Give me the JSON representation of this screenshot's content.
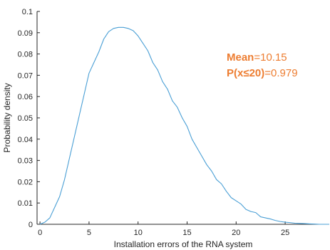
{
  "chart_data": {
    "type": "line",
    "xlabel": "Installation errors of the RNA system",
    "ylabel": "Probability density",
    "xlim": [
      -0.3,
      29.5
    ],
    "ylim": [
      0,
      0.1
    ],
    "xticks": [
      0,
      5,
      10,
      15,
      20,
      25
    ],
    "xtick_labels": [
      "0",
      "5",
      "10",
      "15",
      "20",
      "25"
    ],
    "yticks": [
      0,
      0.01,
      0.02,
      0.03,
      0.04,
      0.05,
      0.06,
      0.07,
      0.08,
      0.09,
      0.1
    ],
    "ytick_labels": [
      "0",
      "0.01",
      "0.02",
      "0.03",
      "0.04",
      "0.05",
      "0.06",
      "0.07",
      "0.08",
      "0.09",
      "0.1"
    ],
    "grid": false,
    "colors": {
      "line": "#4a9fd5",
      "annotation": "#ed7d31",
      "axis": "#262626"
    },
    "series": [
      {
        "x": [
          0,
          0.5,
          1.0,
          1.5,
          2.0,
          2.5,
          3.0,
          3.5,
          4.0,
          4.5,
          5.0,
          5.5,
          6.0,
          6.5,
          7.0,
          7.5,
          8.0,
          8.5,
          9.0,
          9.5,
          10.0,
          10.5,
          11.0,
          11.5,
          12.0,
          12.5,
          13.0,
          13.5,
          14.0,
          14.5,
          15.0,
          15.5,
          16.0,
          16.5,
          17.0,
          17.5,
          18.0,
          18.5,
          19.0,
          19.5,
          20.0,
          20.5,
          21.0,
          21.5,
          22.0,
          22.5,
          23.0,
          23.5,
          24.0,
          24.5,
          25.0,
          25.5,
          26.0,
          26.5,
          27.0,
          27.5,
          28.0,
          28.5,
          29.0,
          29.5
        ],
        "y": [
          0.0,
          0.001,
          0.003,
          0.008,
          0.013,
          0.021,
          0.031,
          0.041,
          0.051,
          0.061,
          0.071,
          0.076,
          0.081,
          0.087,
          0.0905,
          0.092,
          0.0925,
          0.0925,
          0.092,
          0.091,
          0.0885,
          0.085,
          0.0815,
          0.076,
          0.0725,
          0.067,
          0.0635,
          0.058,
          0.055,
          0.05,
          0.046,
          0.04,
          0.036,
          0.032,
          0.028,
          0.025,
          0.021,
          0.019,
          0.0155,
          0.0125,
          0.011,
          0.0095,
          0.007,
          0.006,
          0.0055,
          0.0035,
          0.003,
          0.0025,
          0.0018,
          0.0013,
          0.001,
          0.0008,
          0.0005,
          0.0004,
          0.0003,
          0.0002,
          0.0001,
          0.0,
          0.0,
          0.0
        ]
      }
    ],
    "annotations": [
      {
        "key": "Mean",
        "value": "=10.15"
      },
      {
        "key": "P(x≤20)",
        "value": "=0.979"
      }
    ]
  }
}
